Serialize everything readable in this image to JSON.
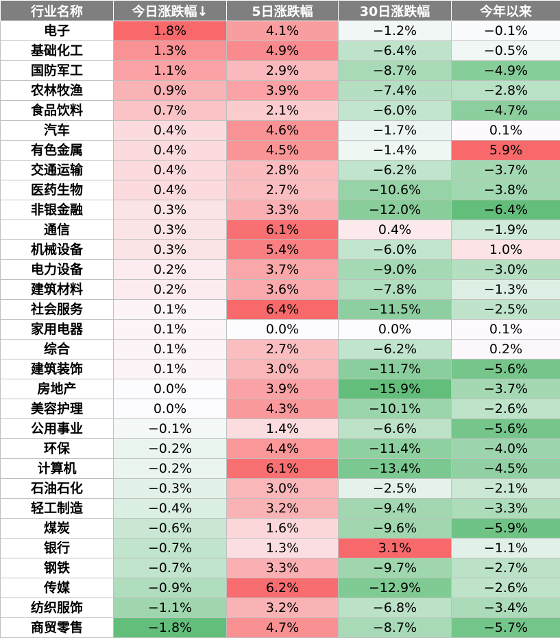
{
  "chart_data": {
    "type": "table",
    "columns": [
      "行业名称",
      "今日涨跌幅↓",
      "5日涨跌幅",
      "30日涨跌幅",
      "今年以来"
    ],
    "rows": [
      [
        "电子",
        "1.8%",
        "4.1%",
        "−1.2%",
        "−0.1%"
      ],
      [
        "基础化工",
        "1.3%",
        "4.9%",
        "−6.4%",
        "−0.5%"
      ],
      [
        "国防军工",
        "1.1%",
        "2.9%",
        "−8.7%",
        "−4.9%"
      ],
      [
        "农林牧渔",
        "0.9%",
        "3.9%",
        "−7.4%",
        "−2.8%"
      ],
      [
        "食品饮料",
        "0.7%",
        "2.1%",
        "−6.0%",
        "−4.7%"
      ],
      [
        "汽车",
        "0.4%",
        "4.6%",
        "−1.7%",
        "0.1%"
      ],
      [
        "有色金属",
        "0.4%",
        "4.5%",
        "−1.4%",
        "5.9%"
      ],
      [
        "交通运输",
        "0.4%",
        "2.8%",
        "−6.2%",
        "−3.7%"
      ],
      [
        "医药生物",
        "0.4%",
        "2.7%",
        "−10.6%",
        "−3.8%"
      ],
      [
        "非银金融",
        "0.3%",
        "3.3%",
        "−12.0%",
        "−6.4%"
      ],
      [
        "通信",
        "0.3%",
        "6.1%",
        "0.4%",
        "−1.9%"
      ],
      [
        "机械设备",
        "0.3%",
        "5.4%",
        "−6.0%",
        "1.0%"
      ],
      [
        "电力设备",
        "0.2%",
        "3.7%",
        "−9.0%",
        "−3.0%"
      ],
      [
        "建筑材料",
        "0.2%",
        "3.6%",
        "−7.8%",
        "−1.3%"
      ],
      [
        "社会服务",
        "0.1%",
        "6.4%",
        "−11.5%",
        "−2.5%"
      ],
      [
        "家用电器",
        "0.1%",
        "0.0%",
        "0.0%",
        "0.1%"
      ],
      [
        "综合",
        "0.1%",
        "2.7%",
        "−6.2%",
        "0.2%"
      ],
      [
        "建筑装饰",
        "0.1%",
        "3.0%",
        "−11.7%",
        "−5.6%"
      ],
      [
        "房地产",
        "0.0%",
        "3.9%",
        "−15.9%",
        "−3.7%"
      ],
      [
        "美容护理",
        "0.0%",
        "4.3%",
        "−10.1%",
        "−2.6%"
      ],
      [
        "公用事业",
        "−0.1%",
        "1.4%",
        "−6.6%",
        "−5.6%"
      ],
      [
        "环保",
        "−0.2%",
        "4.4%",
        "−11.4%",
        "−4.0%"
      ],
      [
        "计算机",
        "−0.2%",
        "6.1%",
        "−13.4%",
        "−4.5%"
      ],
      [
        "石油石化",
        "−0.3%",
        "3.0%",
        "−2.5%",
        "−2.1%"
      ],
      [
        "轻工制造",
        "−0.4%",
        "3.2%",
        "−9.4%",
        "−3.3%"
      ],
      [
        "煤炭",
        "−0.6%",
        "1.6%",
        "−9.6%",
        "−5.9%"
      ],
      [
        "银行",
        "−0.7%",
        "1.3%",
        "3.1%",
        "−1.1%"
      ],
      [
        "钢铁",
        "−0.7%",
        "3.3%",
        "−9.7%",
        "−2.7%"
      ],
      [
        "传媒",
        "−0.9%",
        "6.2%",
        "−12.9%",
        "−2.6%"
      ],
      [
        "纺织服饰",
        "−1.1%",
        "3.2%",
        "−6.8%",
        "−3.4%"
      ],
      [
        "商贸零售",
        "−1.8%",
        "4.7%",
        "−8.7%",
        "−5.7%"
      ]
    ],
    "colors": {
      "header_bg": "#7f7f7f",
      "header_text": "#ffffff",
      "positive_max": "#f8696b",
      "negative_max": "#63be7b",
      "neutral": "#fcfcff"
    }
  }
}
